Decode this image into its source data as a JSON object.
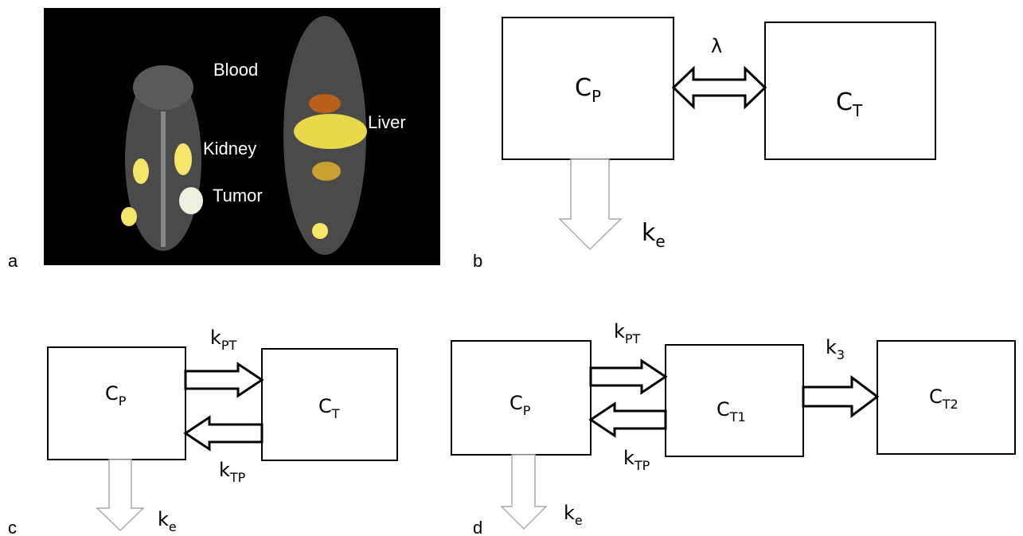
{
  "panels": [
    {
      "label": "a",
      "image_labels": [
        "Blood",
        "Kidney",
        "Tumor",
        "Liver"
      ]
    },
    {
      "label": "b",
      "nodes": [
        {
          "main": "C",
          "sub": "P"
        },
        {
          "main": "C",
          "sub": "T"
        }
      ],
      "edges": [
        {
          "main": "λ"
        }
      ],
      "elimination": {
        "main": "k",
        "sub": "e"
      }
    },
    {
      "label": "c",
      "nodes": [
        {
          "main": "C",
          "sub": "P"
        },
        {
          "main": "C",
          "sub": "T"
        }
      ],
      "edges": [
        {
          "main": "k",
          "sub": "PT"
        },
        {
          "main": "k",
          "sub": "TP"
        }
      ],
      "elimination": {
        "main": "k",
        "sub": "e"
      }
    },
    {
      "label": "d",
      "nodes": [
        {
          "main": "C",
          "sub": "P"
        },
        {
          "main": "C",
          "sub": "T1"
        },
        {
          "main": "C",
          "sub": "T2"
        }
      ],
      "edges": [
        {
          "main": "k",
          "sub": "PT"
        },
        {
          "main": "k",
          "sub": "TP"
        },
        {
          "main": "k",
          "sub": "3"
        }
      ],
      "elimination": {
        "main": "k",
        "sub": "e"
      }
    }
  ]
}
